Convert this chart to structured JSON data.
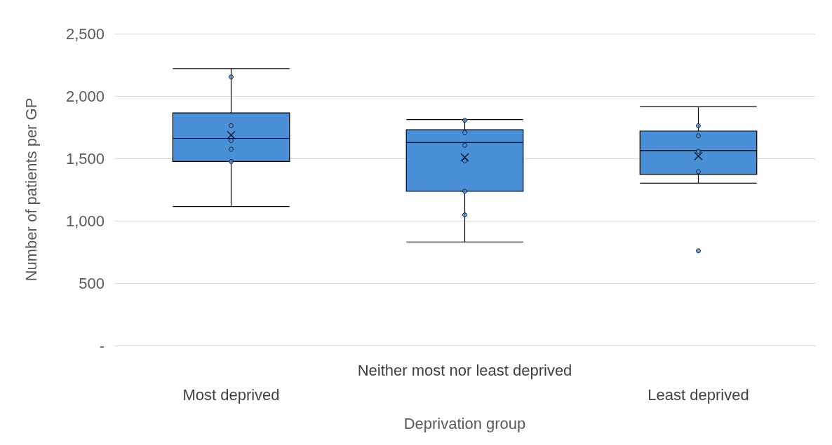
{
  "chart_data": {
    "type": "box",
    "xlabel": "Deprivation group",
    "ylabel": "Number of patients per GP",
    "categories": [
      "Most deprived",
      "Neither most nor least deprived",
      "Least deprived"
    ],
    "boxes": [
      {
        "low": 1115,
        "q1": 1475,
        "median": 1660,
        "q3": 1865,
        "high": 2220,
        "mean": 1687
      },
      {
        "low": 830,
        "q1": 1236,
        "median": 1627,
        "q3": 1730,
        "high": 1811,
        "mean": 1508
      },
      {
        "low": 1301,
        "q1": 1372,
        "median": 1562,
        "q3": 1719,
        "high": 1914,
        "mean": 1518,
        "outliers": [
          759
        ]
      }
    ],
    "color": "#4a90d9",
    "series": [
      {
        "type": "scatter",
        "color": "#4a90d9",
        "x": [
          "Most deprived",
          "Most deprived",
          "Most deprived",
          "Most deprived",
          "Most deprived",
          "Neither most nor least deprived",
          "Neither most nor least deprived",
          "Neither most nor least deprived",
          "Neither most nor least deprived",
          "Neither most nor least deprived",
          "Neither most nor least deprived",
          "Least deprived",
          "Least deprived",
          "Least deprived",
          "Least deprived"
        ],
        "values": [
          2153,
          1762,
          1643,
          1573,
          1475,
          1806,
          1708,
          1605,
          1480,
          1236,
          1047,
          1762,
          1681,
          1556,
          1394
        ]
      }
    ],
    "ylim": [
      0,
      2500
    ],
    "yticks": [
      {
        "value": 0,
        "label": "-"
      },
      {
        "value": 500,
        "label": "500"
      },
      {
        "value": 1000,
        "label": "1,000"
      },
      {
        "value": 1500,
        "label": "1,500"
      },
      {
        "value": 2000,
        "label": "2,000"
      },
      {
        "value": 2500,
        "label": "2,500"
      }
    ],
    "grid": "y",
    "marker": "circle"
  }
}
